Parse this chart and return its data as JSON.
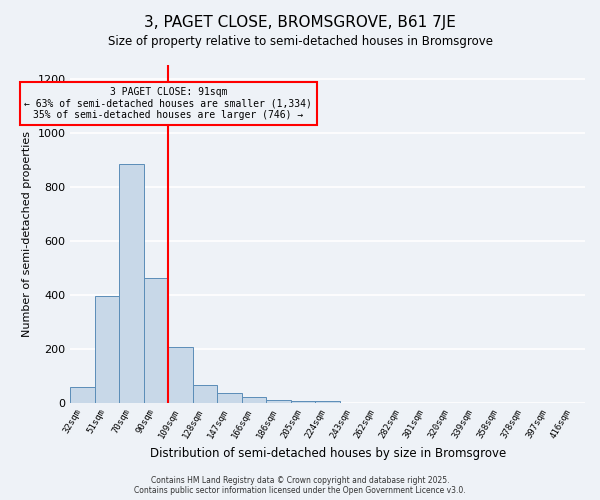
{
  "title": "3, PAGET CLOSE, BROMSGROVE, B61 7JE",
  "subtitle": "Size of property relative to semi-detached houses in Bromsgrove",
  "xlabel": "Distribution of semi-detached houses by size in Bromsgrove",
  "ylabel": "Number of semi-detached properties",
  "bin_labels": [
    "32sqm",
    "51sqm",
    "70sqm",
    "90sqm",
    "109sqm",
    "128sqm",
    "147sqm",
    "166sqm",
    "186sqm",
    "205sqm",
    "224sqm",
    "243sqm",
    "262sqm",
    "282sqm",
    "301sqm",
    "320sqm",
    "339sqm",
    "358sqm",
    "378sqm",
    "397sqm",
    "416sqm"
  ],
  "bar_values": [
    60,
    395,
    885,
    460,
    205,
    65,
    35,
    20,
    10,
    5,
    5,
    0,
    0,
    0,
    0,
    0,
    0,
    0,
    0,
    0,
    0
  ],
  "bar_color": "#c8d8e8",
  "bar_edge_color": "#5b8db8",
  "vline_color": "red",
  "vline_x_index": 3,
  "annotation_title": "3 PAGET CLOSE: 91sqm",
  "annotation_line1": "← 63% of semi-detached houses are smaller (1,334)",
  "annotation_line2": "35% of semi-detached houses are larger (746) →",
  "annotation_box_color": "red",
  "ylim": [
    0,
    1250
  ],
  "yticks": [
    0,
    200,
    400,
    600,
    800,
    1000,
    1200
  ],
  "footer1": "Contains HM Land Registry data © Crown copyright and database right 2025.",
  "footer2": "Contains public sector information licensed under the Open Government Licence v3.0.",
  "bg_color": "#eef2f7",
  "grid_color": "white"
}
